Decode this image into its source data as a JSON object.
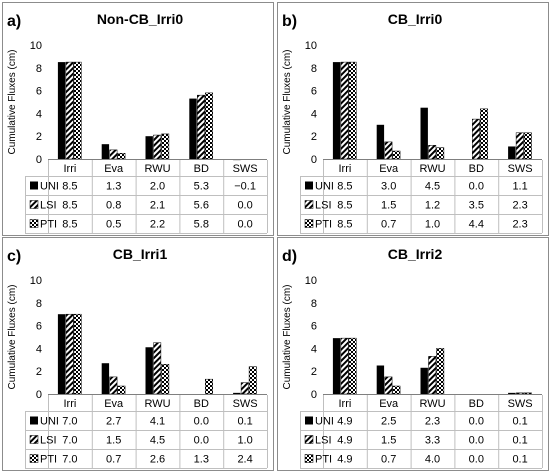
{
  "chart_data": [
    {
      "type": "bar",
      "panel_label": "a)",
      "title": "Non-CB_Irri0",
      "ylabel": "Cumulative Fluxes (cm)",
      "ylim": [
        0,
        10
      ],
      "yticks": [
        0,
        2,
        4,
        6,
        8,
        10
      ],
      "categories": [
        "Irri",
        "Eva",
        "RWU",
        "BD",
        "SWS"
      ],
      "series": [
        {
          "name": "UNI",
          "values": [
            8.5,
            1.3,
            2.0,
            5.3,
            -0.1
          ],
          "labels": [
            "8.5",
            "1.3",
            "2.0",
            "5.3",
            "−0.1"
          ]
        },
        {
          "name": "LSI",
          "values": [
            8.5,
            0.8,
            2.1,
            5.6,
            0.0
          ],
          "labels": [
            "8.5",
            "0.8",
            "2.1",
            "5.6",
            "0.0"
          ]
        },
        {
          "name": "PTI",
          "values": [
            8.5,
            0.5,
            2.2,
            5.8,
            0.0
          ],
          "labels": [
            "8.5",
            "0.5",
            "2.2",
            "5.8",
            "0.0"
          ]
        }
      ]
    },
    {
      "type": "bar",
      "panel_label": "b)",
      "title": "CB_Irri0",
      "ylabel": "Cumulative Fluxes (cm)",
      "ylim": [
        0,
        10
      ],
      "yticks": [
        0,
        2,
        4,
        6,
        8,
        10
      ],
      "categories": [
        "Irri",
        "Eva",
        "RWU",
        "BD",
        "SWS"
      ],
      "series": [
        {
          "name": "UNI",
          "values": [
            8.5,
            3.0,
            4.5,
            0.0,
            1.1
          ],
          "labels": [
            "8.5",
            "3.0",
            "4.5",
            "0.0",
            "1.1"
          ]
        },
        {
          "name": "LSI",
          "values": [
            8.5,
            1.5,
            1.2,
            3.5,
            2.3
          ],
          "labels": [
            "8.5",
            "1.5",
            "1.2",
            "3.5",
            "2.3"
          ]
        },
        {
          "name": "PTI",
          "values": [
            8.5,
            0.7,
            1.0,
            4.4,
            2.3
          ],
          "labels": [
            "8.5",
            "0.7",
            "1.0",
            "4.4",
            "2.3"
          ]
        }
      ]
    },
    {
      "type": "bar",
      "panel_label": "c)",
      "title": "CB_Irri1",
      "ylabel": "Cumulative Fluxes (cm)",
      "ylim": [
        0,
        10
      ],
      "yticks": [
        0,
        2,
        4,
        6,
        8,
        10
      ],
      "categories": [
        "Irri",
        "Eva",
        "RWU",
        "BD",
        "SWS"
      ],
      "series": [
        {
          "name": "UNI",
          "values": [
            7.0,
            2.7,
            4.1,
            0.0,
            0.1
          ],
          "labels": [
            "7.0",
            "2.7",
            "4.1",
            "0.0",
            "0.1"
          ]
        },
        {
          "name": "LSI",
          "values": [
            7.0,
            1.5,
            4.5,
            0.0,
            1.0
          ],
          "labels": [
            "7.0",
            "1.5",
            "4.5",
            "0.0",
            "1.0"
          ]
        },
        {
          "name": "PTI",
          "values": [
            7.0,
            0.7,
            2.6,
            1.3,
            2.4
          ],
          "labels": [
            "7.0",
            "0.7",
            "2.6",
            "1.3",
            "2.4"
          ]
        }
      ]
    },
    {
      "type": "bar",
      "panel_label": "d)",
      "title": "CB_Irri2",
      "ylabel": "Cumulative Fluxes (cm)",
      "ylim": [
        0,
        10
      ],
      "yticks": [
        0,
        2,
        4,
        6,
        8,
        10
      ],
      "categories": [
        "Irri",
        "Eva",
        "RWU",
        "BD",
        "SWS"
      ],
      "series": [
        {
          "name": "UNI",
          "values": [
            4.9,
            2.5,
            2.3,
            0.0,
            0.1
          ],
          "labels": [
            "4.9",
            "2.5",
            "2.3",
            "0.0",
            "0.1"
          ]
        },
        {
          "name": "LSI",
          "values": [
            4.9,
            1.5,
            3.3,
            0.0,
            0.1
          ],
          "labels": [
            "4.9",
            "1.5",
            "3.3",
            "0.0",
            "0.1"
          ]
        },
        {
          "name": "PTI",
          "values": [
            4.9,
            0.7,
            4.0,
            0.0,
            0.1
          ],
          "labels": [
            "4.9",
            "0.7",
            "4.0",
            "0.0",
            "0.1"
          ]
        }
      ]
    }
  ]
}
